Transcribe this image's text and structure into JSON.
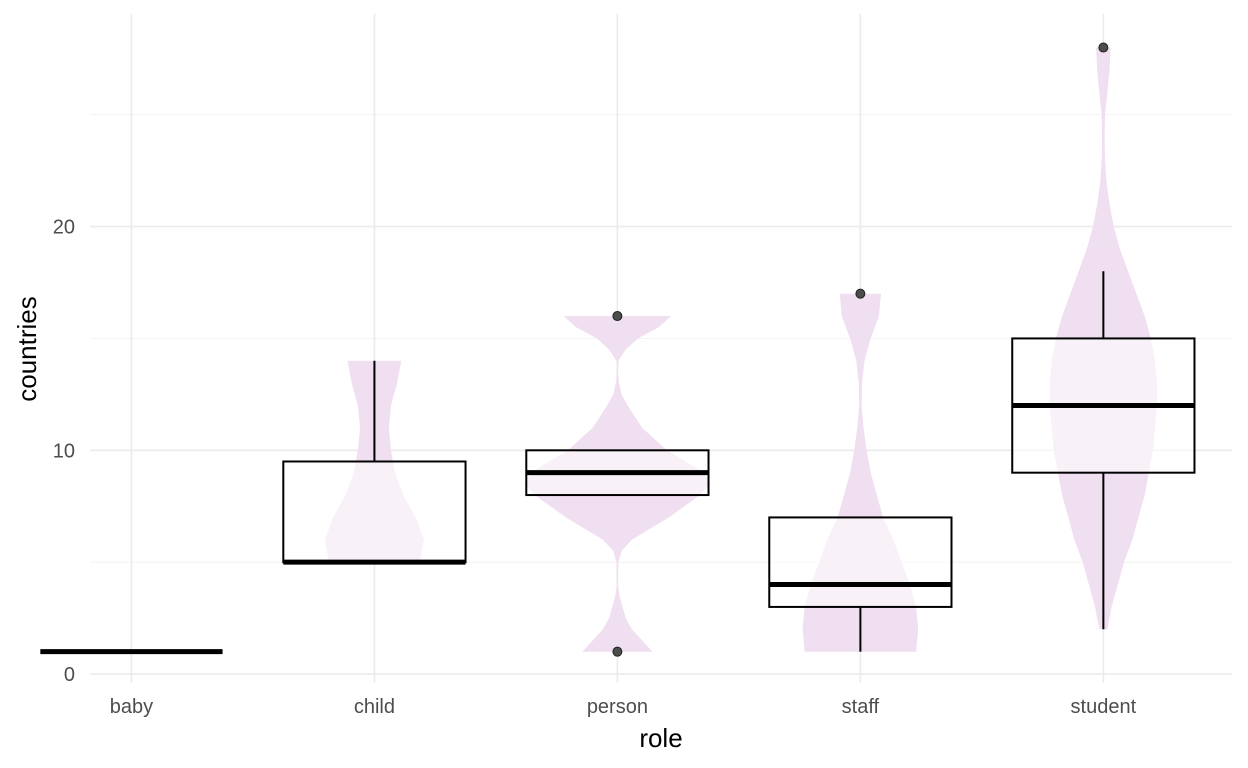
{
  "chart_data": {
    "type": "violin+box",
    "xlabel": "role",
    "ylabel": "countries",
    "categories": [
      "baby",
      "child",
      "person",
      "staff",
      "student"
    ],
    "ylim": [
      -0.4,
      29.5
    ],
    "y_ticks": [
      0,
      10,
      20
    ],
    "grid": true,
    "violin_color": "#f0dff0",
    "violin_inner_color": "#faf2fa",
    "box_color": "#000000",
    "outlier_color": "#4d4d4d",
    "boxes": [
      {
        "name": "baby",
        "min": 1,
        "q1": 1,
        "median": 1,
        "q3": 1,
        "max": 1,
        "outliers": []
      },
      {
        "name": "child",
        "min": 5,
        "q1": 5,
        "median": 5,
        "q3": 9.5,
        "max": 14,
        "outliers": []
      },
      {
        "name": "person",
        "min": 8,
        "q1": 8,
        "median": 9,
        "q3": 10,
        "max": 10,
        "outliers": [
          16,
          1
        ]
      },
      {
        "name": "staff",
        "min": 1,
        "q1": 3,
        "median": 4,
        "q3": 7,
        "max": 7,
        "outliers": [
          17
        ]
      },
      {
        "name": "student",
        "min": 2,
        "q1": 9,
        "median": 12,
        "q3": 15,
        "max": 18,
        "outliers": [
          28
        ]
      }
    ],
    "violins": [
      {
        "name": "baby",
        "profile": []
      },
      {
        "name": "child",
        "profile": [
          [
            5,
            0.22
          ],
          [
            6,
            0.24
          ],
          [
            7,
            0.2
          ],
          [
            8,
            0.14
          ],
          [
            9,
            0.1
          ],
          [
            10,
            0.08
          ],
          [
            11,
            0.07
          ],
          [
            12,
            0.08
          ],
          [
            13,
            0.11
          ],
          [
            14,
            0.13
          ]
        ]
      },
      {
        "name": "person",
        "profile": [
          [
            1,
            0.17
          ],
          [
            1.5,
            0.12
          ],
          [
            2,
            0.07
          ],
          [
            2.5,
            0.04
          ],
          [
            3,
            0.025
          ],
          [
            3.5,
            0.01
          ],
          [
            4,
            0.003
          ],
          [
            5,
            0.005
          ],
          [
            5.5,
            0.02
          ],
          [
            6,
            0.07
          ],
          [
            7,
            0.25
          ],
          [
            8,
            0.4
          ],
          [
            8.5,
            0.45
          ],
          [
            9,
            0.42
          ],
          [
            9.5,
            0.33
          ],
          [
            10,
            0.24
          ],
          [
            11,
            0.12
          ],
          [
            12,
            0.05
          ],
          [
            12.5,
            0.02
          ],
          [
            13,
            0.008
          ],
          [
            13.5,
            0.003
          ],
          [
            14,
            0.005
          ],
          [
            14.5,
            0.04
          ],
          [
            15,
            0.1
          ],
          [
            15.5,
            0.2
          ],
          [
            16,
            0.26
          ]
        ]
      },
      {
        "name": "staff",
        "profile": [
          [
            1,
            0.27
          ],
          [
            2,
            0.28
          ],
          [
            3,
            0.27
          ],
          [
            4,
            0.24
          ],
          [
            5,
            0.2
          ],
          [
            6,
            0.16
          ],
          [
            7,
            0.11
          ],
          [
            8,
            0.08
          ],
          [
            9,
            0.05
          ],
          [
            10,
            0.03
          ],
          [
            11,
            0.015
          ],
          [
            12,
            0.006
          ],
          [
            13,
            0.008
          ],
          [
            14,
            0.02
          ],
          [
            15,
            0.05
          ],
          [
            16,
            0.09
          ],
          [
            17,
            0.1
          ]
        ]
      },
      {
        "name": "student",
        "profile": [
          [
            2,
            0.02
          ],
          [
            3,
            0.04
          ],
          [
            4,
            0.07
          ],
          [
            5,
            0.1
          ],
          [
            6,
            0.14
          ],
          [
            7,
            0.17
          ],
          [
            8,
            0.2
          ],
          [
            9,
            0.22
          ],
          [
            10,
            0.24
          ],
          [
            11,
            0.25
          ],
          [
            12,
            0.26
          ],
          [
            13,
            0.26
          ],
          [
            14,
            0.25
          ],
          [
            15,
            0.23
          ],
          [
            16,
            0.2
          ],
          [
            17,
            0.16
          ],
          [
            18,
            0.12
          ],
          [
            19,
            0.08
          ],
          [
            20,
            0.05
          ],
          [
            21,
            0.03
          ],
          [
            22,
            0.015
          ],
          [
            23,
            0.008
          ],
          [
            24,
            0.006
          ],
          [
            25,
            0.008
          ],
          [
            26,
            0.02
          ],
          [
            27,
            0.03
          ],
          [
            28,
            0.035
          ]
        ]
      }
    ]
  }
}
